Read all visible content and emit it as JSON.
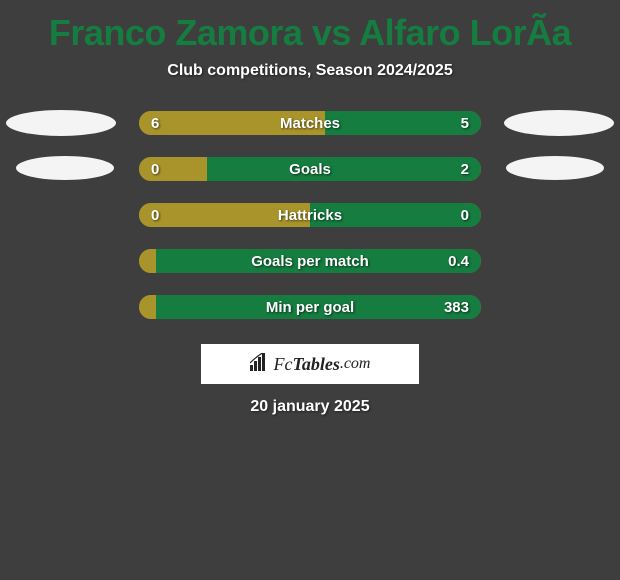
{
  "title": "Franco Zamora vs Alfaro LorÃ­a",
  "subtitle": "Club competitions, Season 2024/2025",
  "footer_date": "20 january 2025",
  "colors": {
    "background": "#3e3e3e",
    "title": "#147d3f",
    "text": "#ffffff",
    "bar_left": "#a8942b",
    "bar_right": "#147d3f",
    "oval": "#f4f4f4",
    "logo_bg": "#ffffff"
  },
  "logo": {
    "fc": "Fc",
    "tables": "Tables",
    "com": ".com"
  },
  "stats": [
    {
      "label": "Matches",
      "left_value": "6",
      "right_value": "5",
      "left_pct": 54.5,
      "right_pct": 45.5
    },
    {
      "label": "Goals",
      "left_value": "0",
      "right_value": "2",
      "left_pct": 20,
      "right_pct": 80
    },
    {
      "label": "Hattricks",
      "left_value": "0",
      "right_value": "0",
      "left_pct": 50,
      "right_pct": 50
    },
    {
      "label": "Goals per match",
      "left_value": "",
      "right_value": "0.4",
      "left_pct": 5,
      "right_pct": 95
    },
    {
      "label": "Min per goal",
      "left_value": "",
      "right_value": "383",
      "left_pct": 5,
      "right_pct": 95
    }
  ]
}
